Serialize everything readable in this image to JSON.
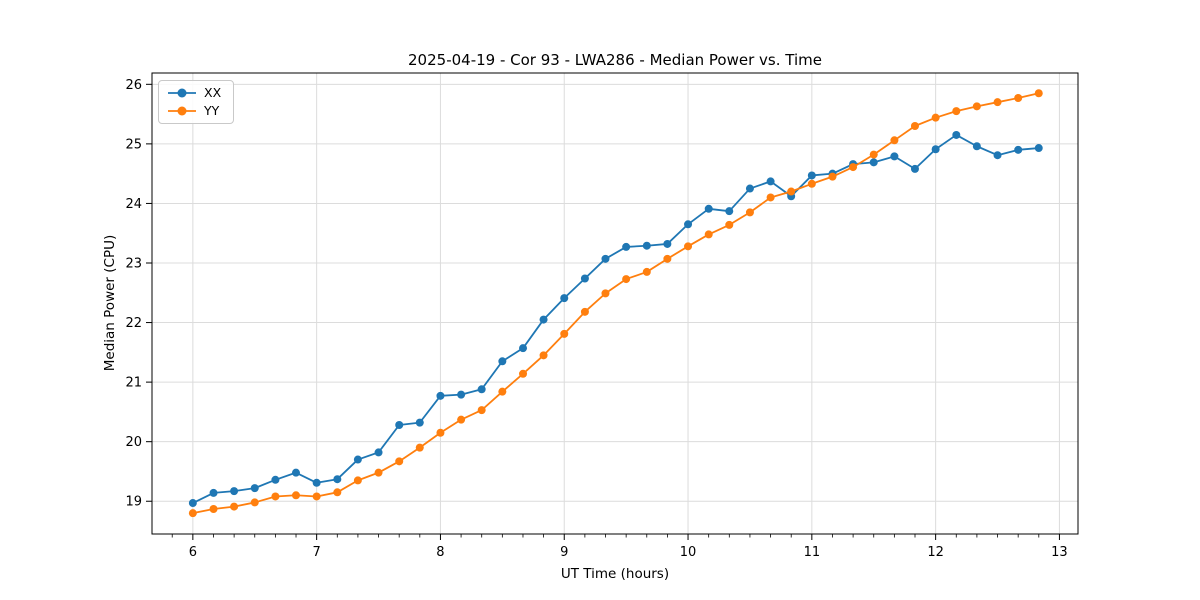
{
  "chart_data": {
    "type": "line",
    "title": "2025-04-19 - Cor 93 - LWA286 - Median Power vs. Time",
    "xlabel": "UT Time (hours)",
    "ylabel": "Median Power (CPU)",
    "xlim": [
      5.67,
      13.15
    ],
    "ylim": [
      18.45,
      26.19
    ],
    "xticks": [
      6,
      7,
      8,
      9,
      10,
      11,
      12,
      13
    ],
    "yticks": [
      19,
      20,
      21,
      22,
      23,
      24,
      25,
      26
    ],
    "minor_ticks_x_per_hour": 6,
    "grid": true,
    "legend_position": "upper left",
    "grid_color": "#dcdcdc",
    "x": [
      6.0,
      6.167,
      6.333,
      6.5,
      6.667,
      6.833,
      7.0,
      7.167,
      7.333,
      7.5,
      7.667,
      7.833,
      8.0,
      8.167,
      8.333,
      8.5,
      8.667,
      8.833,
      9.0,
      9.167,
      9.333,
      9.5,
      9.667,
      9.833,
      10.0,
      10.167,
      10.333,
      10.5,
      10.667,
      10.833,
      11.0,
      11.167,
      11.333,
      11.5,
      11.667,
      11.833,
      12.0,
      12.167,
      12.333,
      12.5,
      12.667,
      12.833
    ],
    "series": [
      {
        "name": "XX",
        "color": "#1f77b4",
        "values": [
          18.97,
          19.14,
          19.17,
          19.22,
          19.36,
          19.48,
          19.31,
          19.37,
          19.7,
          19.82,
          20.28,
          20.32,
          20.77,
          20.79,
          20.88,
          21.35,
          21.57,
          22.05,
          22.41,
          22.74,
          23.07,
          23.27,
          23.29,
          23.32,
          23.65,
          23.91,
          23.87,
          24.25,
          24.37,
          24.12,
          24.47,
          24.5,
          24.66,
          24.69,
          24.79,
          24.58,
          24.91,
          25.15,
          24.96,
          24.81,
          24.9,
          24.93
        ]
      },
      {
        "name": "YY",
        "color": "#ff7f0e",
        "values": [
          18.8,
          18.87,
          18.91,
          18.98,
          19.08,
          19.1,
          19.08,
          19.15,
          19.35,
          19.48,
          19.67,
          19.9,
          20.15,
          20.37,
          20.53,
          20.84,
          21.14,
          21.45,
          21.81,
          22.18,
          22.49,
          22.73,
          22.85,
          23.07,
          23.28,
          23.48,
          23.64,
          23.85,
          24.1,
          24.2,
          24.33,
          24.45,
          24.61,
          24.82,
          25.06,
          25.3,
          25.44,
          25.55,
          25.63,
          25.7,
          25.77,
          25.85
        ]
      }
    ]
  }
}
